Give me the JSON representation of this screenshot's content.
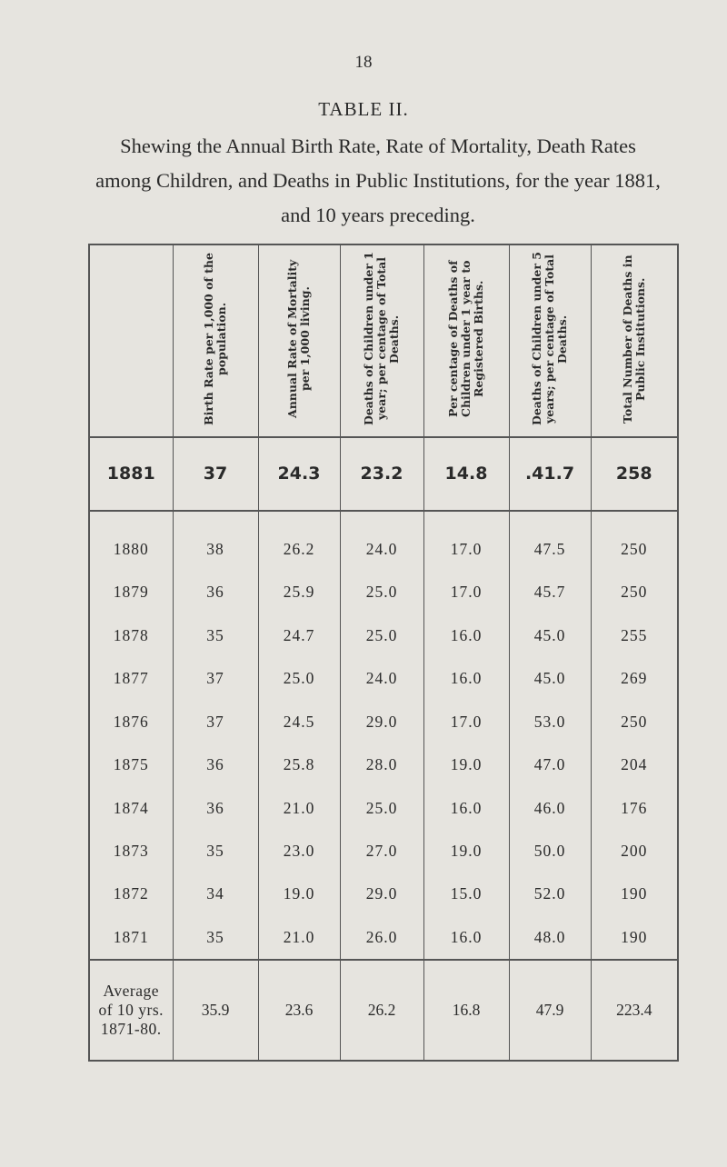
{
  "page_number": "18",
  "title": "TABLE II.",
  "caption": "Shewing the Annual Birth Rate, Rate of Mortality, Death Rates among Children, and Deaths in Public Institutions, for the year 1881, and 10 years preceding.",
  "table": {
    "headers": [
      "",
      "Birth Rate per 1,000 of the population.",
      "Annual Rate of Mortality per 1,000 living.",
      "Deaths of Children under 1 year; per centage of Total Deaths.",
      "Per centage of Deaths of Children under 1 year to Registered Births.",
      "Deaths of Children under 5 years; per centage of Total Deaths.",
      "Total Number of Deaths in Public Institutions."
    ],
    "current": [
      "1881",
      "37",
      "24.3",
      "23.2",
      "14.8",
      ".41.7",
      "258"
    ],
    "rows": [
      [
        "1880",
        "38",
        "26.2",
        "24.0",
        "17.0",
        "47.5",
        "250"
      ],
      [
        "1879",
        "36",
        "25.9",
        "25.0",
        "17.0",
        "45.7",
        "250"
      ],
      [
        "1878",
        "35",
        "24.7",
        "25.0",
        "16.0",
        "45.0",
        "255"
      ],
      [
        "1877",
        "37",
        "25.0",
        "24.0",
        "16.0",
        "45.0",
        "269"
      ],
      [
        "1876",
        "37",
        "24.5",
        "29.0",
        "17.0",
        "53.0",
        "250"
      ],
      [
        "1875",
        "36",
        "25.8",
        "28.0",
        "19.0",
        "47.0",
        "204"
      ],
      [
        "1874",
        "36",
        "21.0",
        "25.0",
        "16.0",
        "46.0",
        "176"
      ],
      [
        "1873",
        "35",
        "23.0",
        "27.0",
        "19.0",
        "50.0",
        "200"
      ],
      [
        "1872",
        "34",
        "19.0",
        "29.0",
        "15.0",
        "52.0",
        "190"
      ],
      [
        "1871",
        "35",
        "21.0",
        "26.0",
        "16.0",
        "48.0",
        "190"
      ]
    ],
    "average": {
      "label_lines": [
        "Average",
        "of 10 yrs.",
        "1871-80."
      ],
      "values": [
        "35.9",
        "23.6",
        "26.2",
        "16.8",
        "47.9",
        "223.4"
      ]
    }
  }
}
